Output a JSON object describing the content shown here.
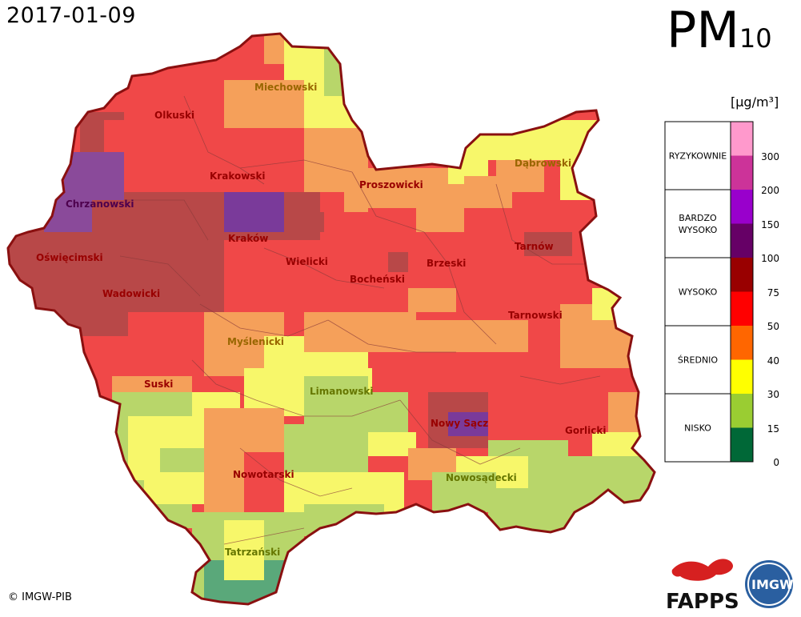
{
  "date": "2017-01-09",
  "title": {
    "main": "PM",
    "sub": "10"
  },
  "unit": "[µg/m³]",
  "copyright": "© IMGW-PIB",
  "logos": {
    "fapps": "FAPPS",
    "imgw": "IMGW"
  },
  "legend": {
    "categories": [
      {
        "label": "RYZYKOWNIE"
      },
      {
        "label": "BARDZO\nWYSOKO"
      },
      {
        "label": "WYSOKO"
      },
      {
        "label": "ŚREDNIO"
      },
      {
        "label": "NISKO"
      }
    ],
    "ticks": [
      "300",
      "200",
      "150",
      "100",
      "75",
      "50",
      "40",
      "30",
      "15",
      "0"
    ],
    "colors": [
      "#006837",
      "#9acd32",
      "#ffff00",
      "#ff6600",
      "#ff0000",
      "#990000",
      "#660066",
      "#9900cc",
      "#cc3399",
      "#ff99cc"
    ]
  },
  "districts": [
    {
      "name": "Miechowski",
      "color": "#996600"
    },
    {
      "name": "Olkuski",
      "color": "#990000"
    },
    {
      "name": "Dąbrowski",
      "color": "#996600"
    },
    {
      "name": "Krakowski",
      "color": "#990000"
    },
    {
      "name": "Proszowicki",
      "color": "#990000"
    },
    {
      "name": "Chrzanowski",
      "color": "#4d004d"
    },
    {
      "name": "Kraków",
      "color": "#990000"
    },
    {
      "name": "Tarnów",
      "color": "#990000"
    },
    {
      "name": "Oświęcimski",
      "color": "#990000"
    },
    {
      "name": "Wielicki",
      "color": "#990000"
    },
    {
      "name": "Brzeski",
      "color": "#990000"
    },
    {
      "name": "Bocheński",
      "color": "#990000"
    },
    {
      "name": "Wadowicki",
      "color": "#990000"
    },
    {
      "name": "Tarnowski",
      "color": "#990000"
    },
    {
      "name": "Myślenicki",
      "color": "#996600"
    },
    {
      "name": "Suski",
      "color": "#990000"
    },
    {
      "name": "Limanowski",
      "color": "#667700"
    },
    {
      "name": "Nowy Sącz",
      "color": "#990000"
    },
    {
      "name": "Gorlicki",
      "color": "#990000"
    },
    {
      "name": "Nowotarski",
      "color": "#990000"
    },
    {
      "name": "Nowosądecki",
      "color": "#667700"
    },
    {
      "name": "Tatrzański",
      "color": "#667700"
    }
  ]
}
